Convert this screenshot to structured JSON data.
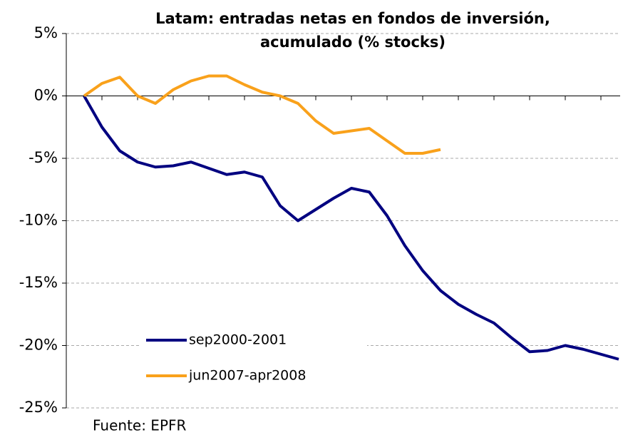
{
  "chart_data": {
    "type": "line",
    "title": "Latam: entradas netas en fondos de inversión,",
    "subtitle": "acumulado (% stocks)",
    "source": "Fuente: EPFR",
    "categories": [
      null,
      null,
      null,
      null,
      null,
      null,
      null,
      null,
      null,
      null,
      null,
      null,
      null,
      null,
      null,
      null,
      null,
      null,
      null,
      null,
      null,
      null,
      null,
      null,
      null,
      null,
      null,
      null,
      null,
      null,
      null
    ],
    "series": [
      {
        "name": "sep2000-2001",
        "color": "#000080",
        "values": [
          0,
          -2.5,
          -4.4,
          -5.3,
          -5.7,
          -5.6,
          -5.3,
          -5.8,
          -6.3,
          -6.1,
          -6.5,
          -8.8,
          -10.0,
          -9.1,
          -8.2,
          -7.4,
          -7.7,
          -9.6,
          -12.0,
          -14.0,
          -15.6,
          -16.7,
          -17.5,
          -18.2,
          -19.4,
          -20.5,
          -20.4,
          -20.0,
          -20.3,
          -20.7,
          -21.1
        ]
      },
      {
        "name": "jun2007-apr2008",
        "color": "#f9a11b",
        "values": [
          0,
          1.0,
          1.5,
          0.0,
          -0.6,
          0.5,
          1.2,
          1.6,
          1.6,
          0.9,
          0.3,
          0.0,
          -0.6,
          -2.0,
          -3.0,
          -2.8,
          -2.6,
          -3.6,
          -4.6,
          -4.6,
          -4.3,
          null,
          null,
          null,
          null,
          null,
          null,
          null,
          null,
          null,
          null
        ]
      }
    ],
    "ylim": [
      -25,
      5
    ],
    "yticks": [
      {
        "value": -25,
        "label": "-25%"
      },
      {
        "value": -20,
        "label": "-20%"
      },
      {
        "value": -15,
        "label": "-15%"
      },
      {
        "value": -10,
        "label": "-10%"
      },
      {
        "value": -5,
        "label": "-5%"
      },
      {
        "value": 0,
        "label": "0%"
      },
      {
        "value": 5,
        "label": "5%"
      }
    ],
    "grid": true
  }
}
